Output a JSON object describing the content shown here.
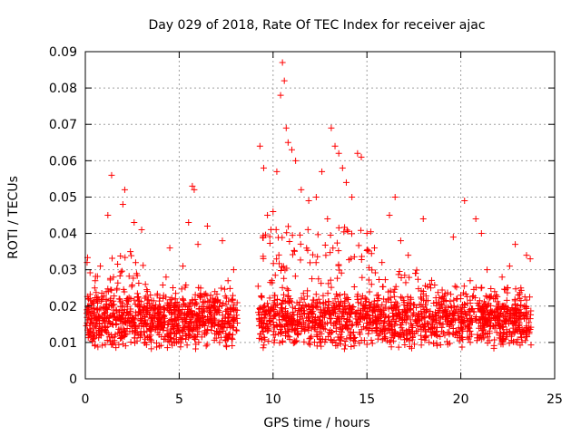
{
  "chart_data": {
    "type": "scatter",
    "title": "Day 029 of 2018, Rate Of TEC Index for receiver ajac",
    "xlabel": "GPS time / hours",
    "ylabel": "ROTI / TECUs",
    "xlim": [
      0,
      25
    ],
    "ylim": [
      0,
      0.09
    ],
    "xticks": [
      0,
      5,
      10,
      15,
      20,
      25
    ],
    "yticks": [
      0,
      0.01,
      0.02,
      0.03,
      0.04,
      0.05,
      0.06,
      0.07,
      0.08,
      0.09
    ],
    "xtick_labels": [
      "0",
      "5",
      "10",
      "15",
      "20",
      "25"
    ],
    "ytick_labels": [
      "0",
      "0.01",
      "0.02",
      "0.03",
      "0.04",
      "0.05",
      "0.06",
      "0.07",
      "0.08",
      "0.09"
    ],
    "grid": true,
    "marker": "+",
    "color": "#ff0000",
    "data_gap_hours": [
      8.1,
      9.2
    ],
    "series": [
      {
        "name": "ROTI",
        "points": [
          [
            0.2,
            0.012
          ],
          [
            0.5,
            0.025
          ],
          [
            0.8,
            0.031
          ],
          [
            1.0,
            0.018
          ],
          [
            1.2,
            0.045
          ],
          [
            1.5,
            0.028
          ],
          [
            1.4,
            0.056
          ],
          [
            1.8,
            0.022
          ],
          [
            2.0,
            0.048
          ],
          [
            2.1,
            0.052
          ],
          [
            2.4,
            0.035
          ],
          [
            2.6,
            0.043
          ],
          [
            3.0,
            0.041
          ],
          [
            3.2,
            0.026
          ],
          [
            3.6,
            0.019
          ],
          [
            4.0,
            0.015
          ],
          [
            4.3,
            0.028
          ],
          [
            4.5,
            0.036
          ],
          [
            4.8,
            0.022
          ],
          [
            5.2,
            0.031
          ],
          [
            5.5,
            0.043
          ],
          [
            5.7,
            0.053
          ],
          [
            5.8,
            0.052
          ],
          [
            6.0,
            0.037
          ],
          [
            6.5,
            0.042
          ],
          [
            6.9,
            0.024
          ],
          [
            7.3,
            0.038
          ],
          [
            7.6,
            0.027
          ],
          [
            7.9,
            0.03
          ],
          [
            9.3,
            0.064
          ],
          [
            9.5,
            0.058
          ],
          [
            9.7,
            0.045
          ],
          [
            10.0,
            0.046
          ],
          [
            10.2,
            0.057
          ],
          [
            10.4,
            0.078
          ],
          [
            10.5,
            0.087
          ],
          [
            10.6,
            0.082
          ],
          [
            10.7,
            0.069
          ],
          [
            10.8,
            0.065
          ],
          [
            11.0,
            0.063
          ],
          [
            11.2,
            0.06
          ],
          [
            11.5,
            0.052
          ],
          [
            11.9,
            0.049
          ],
          [
            12.3,
            0.05
          ],
          [
            12.6,
            0.057
          ],
          [
            12.9,
            0.044
          ],
          [
            13.1,
            0.069
          ],
          [
            13.3,
            0.064
          ],
          [
            13.5,
            0.062
          ],
          [
            13.7,
            0.058
          ],
          [
            13.9,
            0.054
          ],
          [
            14.2,
            0.05
          ],
          [
            14.5,
            0.062
          ],
          [
            14.7,
            0.061
          ],
          [
            15.0,
            0.04
          ],
          [
            15.4,
            0.036
          ],
          [
            15.8,
            0.032
          ],
          [
            16.2,
            0.045
          ],
          [
            16.5,
            0.05
          ],
          [
            16.8,
            0.038
          ],
          [
            17.2,
            0.034
          ],
          [
            17.6,
            0.029
          ],
          [
            18.0,
            0.044
          ],
          [
            18.4,
            0.025
          ],
          [
            18.8,
            0.021
          ],
          [
            19.2,
            0.019
          ],
          [
            19.6,
            0.039
          ],
          [
            20.0,
            0.023
          ],
          [
            20.2,
            0.049
          ],
          [
            20.5,
            0.027
          ],
          [
            20.8,
            0.044
          ],
          [
            21.1,
            0.04
          ],
          [
            21.4,
            0.03
          ],
          [
            21.8,
            0.024
          ],
          [
            22.2,
            0.028
          ],
          [
            22.6,
            0.031
          ],
          [
            22.9,
            0.037
          ],
          [
            23.2,
            0.025
          ],
          [
            23.5,
            0.034
          ],
          [
            23.7,
            0.033
          ]
        ]
      }
    ]
  }
}
